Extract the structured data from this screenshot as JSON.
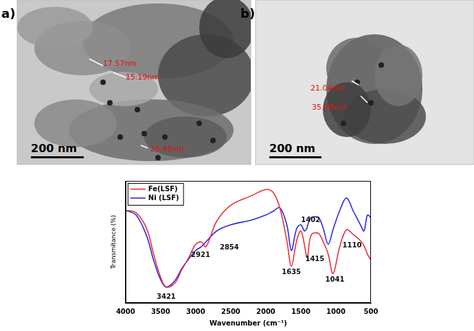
{
  "panels": [
    {
      "label": "a)",
      "scale_bar": "200 nm",
      "measurements": [
        "17.57nm",
        "15.19nm",
        "20.45nm"
      ]
    },
    {
      "label": "b)",
      "scale_bar": "200 nm",
      "measurements": [
        "21.04nm",
        "35.09nm"
      ]
    }
  ],
  "chart_data": {
    "type": "line",
    "x_label": "Wavenumber (cm⁻¹)",
    "y_label": "Transmitance (%)",
    "x": [
      4000,
      3850,
      3700,
      3600,
      3500,
      3421,
      3300,
      3200,
      3100,
      3000,
      2921,
      2854,
      2700,
      2500,
      2200,
      2000,
      1900,
      1800,
      1700,
      1635,
      1560,
      1500,
      1450,
      1415,
      1402,
      1350,
      1250,
      1180,
      1110,
      1041,
      950,
      850,
      750,
      650,
      600,
      550,
      500
    ],
    "series": [
      {
        "name": "Fe(LSF)",
        "color": "#e8303a",
        "values": [
          76,
          74,
          61,
          40,
          21,
          13,
          16,
          27,
          37,
          48,
          50,
          46,
          67,
          80,
          88,
          93,
          91,
          78,
          51,
          30,
          51,
          59,
          48,
          37,
          39,
          56,
          57,
          50,
          40,
          24,
          45,
          60,
          56,
          51,
          47,
          40,
          35
        ]
      },
      {
        "name": "Ni (LSF)",
        "color": "#2a2adf",
        "values": [
          76,
          72,
          55,
          35,
          19,
          13,
          18,
          28,
          36,
          43,
          46,
          50,
          59,
          64,
          68,
          72,
          75,
          78,
          64,
          43,
          61,
          64,
          59,
          61,
          64,
          70,
          70,
          61,
          48,
          60,
          75,
          86,
          75,
          64,
          59,
          72,
          70
        ]
      }
    ],
    "xlim": [
      4000,
      500
    ],
    "xticks": [
      4000,
      3500,
      3000,
      2500,
      2000,
      1500,
      1000,
      500
    ],
    "ylim": [
      0,
      100
    ],
    "tick_labels": "x",
    "grid": false,
    "legend": "upper left",
    "annotations": [
      {
        "text": "3421",
        "x": 3421,
        "y": 5
      },
      {
        "text": "2921",
        "x": 2930,
        "y": 39
      },
      {
        "text": "2854",
        "x": 2520,
        "y": 45
      },
      {
        "text": "1635",
        "x": 1635,
        "y": 25
      },
      {
        "text": "1415",
        "x": 1300,
        "y": 36
      },
      {
        "text": "1402",
        "x": 1360,
        "y": 68
      },
      {
        "text": "1110",
        "x": 770,
        "y": 47
      },
      {
        "text": "1041",
        "x": 1015,
        "y": 19
      }
    ]
  }
}
